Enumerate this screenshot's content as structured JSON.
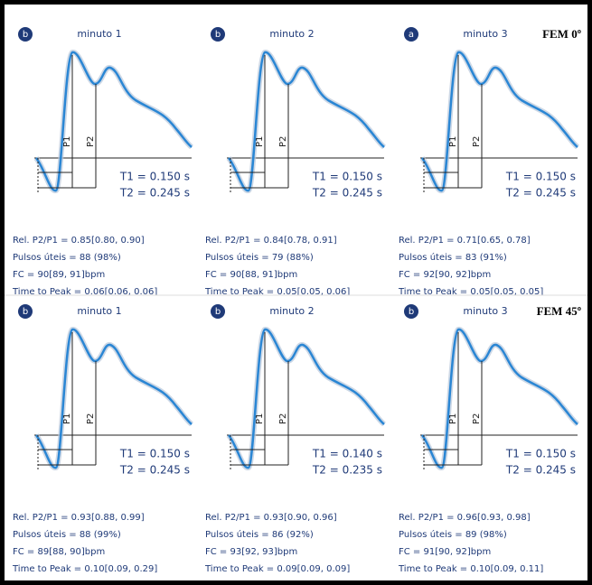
{
  "group_labels": [
    "FEM 0º",
    "FEM 45º"
  ],
  "panels": [
    {
      "badge": "b",
      "title": "minuto 1",
      "p1": "P1",
      "p2": "P2",
      "t1": "T1 = 0.150 s",
      "t2": "T2 = 0.245 s",
      "stats": [
        "Rel. P2/P1 = 0.85[0.80, 0.90]",
        "Pulsos úteis = 88 (98%)",
        "FC = 90[89, 91]bpm",
        "Time to Peak = 0.06[0.06, 0.06]"
      ]
    },
    {
      "badge": "b",
      "title": "minuto 2",
      "p1": "P1",
      "p2": "P2",
      "t1": "T1 = 0.150 s",
      "t2": "T2 = 0.245 s",
      "stats": [
        "Rel. P2/P1 = 0.84[0.78, 0.91]",
        "Pulsos úteis = 79 (88%)",
        "FC = 90[88, 91]bpm",
        "Time to Peak = 0.05[0.05, 0.06]"
      ]
    },
    {
      "badge": "a",
      "title": "minuto 3",
      "p1": "P1",
      "p2": "P2",
      "t1": "T1 = 0.150 s",
      "t2": "T2 = 0.245 s",
      "stats": [
        "Rel. P2/P1 = 0.71[0.65, 0.78]",
        "Pulsos úteis = 83 (91%)",
        "FC = 92[90, 92]bpm",
        "Time to Peak = 0.05[0.05, 0.05]"
      ]
    },
    {
      "badge": "b",
      "title": "minuto 1",
      "p1": "P1",
      "p2": "P2",
      "t1": "T1 = 0.150 s",
      "t2": "T2 = 0.245 s",
      "stats": [
        "Rel. P2/P1 = 0.93[0.88, 0.99]",
        "Pulsos úteis = 88 (99%)",
        "FC = 89[88, 90]bpm",
        "Time to Peak = 0.10[0.09, 0.29]"
      ]
    },
    {
      "badge": "b",
      "title": "minuto 2",
      "p1": "P1",
      "p2": "P2",
      "t1": "T1 = 0.140 s",
      "t2": "T2 = 0.235 s",
      "stats": [
        "Rel. P2/P1 = 0.93[0.90, 0.96]",
        "Pulsos úteis = 86 (92%)",
        "FC = 93[92, 93]bpm",
        "Time to Peak = 0.09[0.09, 0.09]"
      ]
    },
    {
      "badge": "b",
      "title": "minuto 3",
      "p1": "P1",
      "p2": "P2",
      "t1": "T1 = 0.150 s",
      "t2": "T2 = 0.245 s",
      "stats": [
        "Rel. P2/P1 = 0.96[0.93, 0.98]",
        "Pulsos úteis = 89 (98%)",
        "FC = 91[90, 92]bpm",
        "Time to Peak = 0.10[0.09, 0.11]"
      ]
    }
  ]
}
